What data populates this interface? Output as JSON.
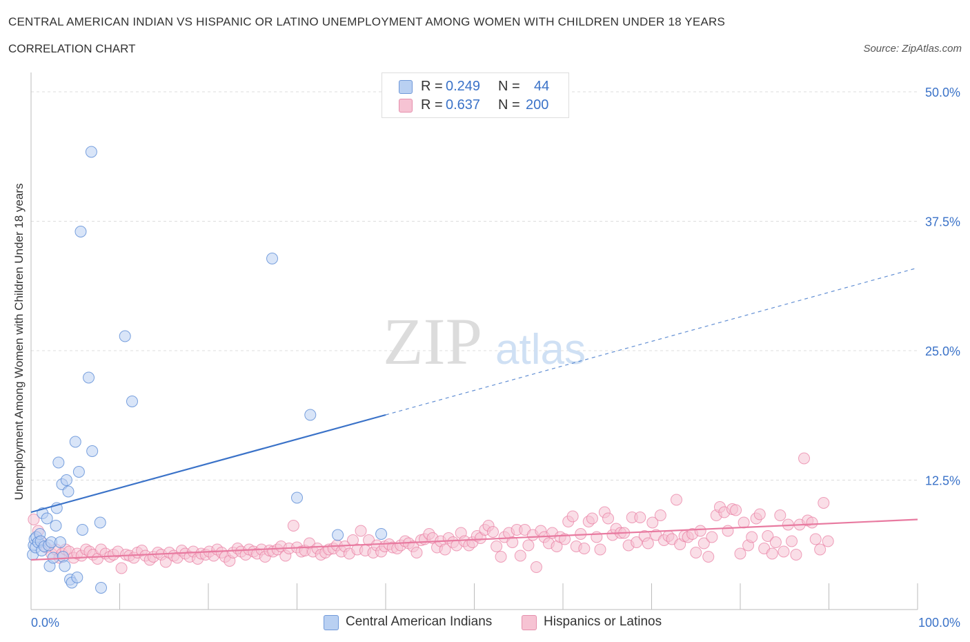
{
  "title": "CENTRAL AMERICAN INDIAN VS HISPANIC OR LATINO UNEMPLOYMENT AMONG WOMEN WITH CHILDREN UNDER 18 YEARS",
  "subtitle": "CORRELATION CHART",
  "source": "Source: ZipAtlas.com",
  "watermark": {
    "zip": "ZIP",
    "atlas": "atlas"
  },
  "colors": {
    "blue": "#3a72c8",
    "blue_fill": "#b9d0f2",
    "pink": "#e87aa0",
    "pink_fill": "#f6c3d3"
  },
  "legend": {
    "rows": [
      {
        "r_label": "R =",
        "r_value": "0.249",
        "n_label": "N =",
        "n_value": "44"
      },
      {
        "r_label": "R =",
        "r_value": "0.637",
        "n_label": "N =",
        "n_value": "200"
      }
    ]
  },
  "bottom_legend": [
    "Central American Indians",
    "Hispanics or Latinos"
  ],
  "chart_data": {
    "type": "scatter",
    "title": "CENTRAL AMERICAN INDIAN VS HISPANIC OR LATINO UNEMPLOYMENT AMONG WOMEN WITH CHILDREN UNDER 18 YEARS",
    "xlabel": "",
    "ylabel": "Unemployment Among Women with Children Under 18 years",
    "xlim": [
      0,
      100
    ],
    "ylim": [
      0,
      50
    ],
    "x_tick_labels": [
      "0.0%",
      "100.0%"
    ],
    "y_ticks": [
      12.5,
      25.0,
      37.5,
      50.0
    ],
    "y_tick_labels": [
      "12.5%",
      "25.0%",
      "37.5%",
      "50.0%"
    ],
    "grid": true,
    "legend_position": "top-center",
    "series": [
      {
        "name": "Central American Indians",
        "r": 0.249,
        "n": 44,
        "trend": {
          "x0": 0,
          "y0": 9.4,
          "x1": 40,
          "y1": 18.8,
          "dashed_x1": 100,
          "dashed_y1": 33.0
        },
        "points": [
          [
            0.2,
            5.3
          ],
          [
            0.3,
            6.2
          ],
          [
            0.4,
            6.8
          ],
          [
            0.5,
            6.0
          ],
          [
            0.6,
            7.0
          ],
          [
            0.8,
            6.5
          ],
          [
            1.0,
            7.3
          ],
          [
            1.1,
            6.6
          ],
          [
            1.2,
            5.7
          ],
          [
            1.3,
            9.3
          ],
          [
            1.5,
            6.1
          ],
          [
            1.8,
            8.8
          ],
          [
            2.0,
            6.2
          ],
          [
            2.1,
            4.2
          ],
          [
            2.3,
            6.5
          ],
          [
            2.5,
            5.0
          ],
          [
            2.8,
            8.1
          ],
          [
            2.9,
            9.8
          ],
          [
            3.1,
            14.2
          ],
          [
            3.3,
            6.5
          ],
          [
            3.5,
            12.1
          ],
          [
            3.6,
            5.1
          ],
          [
            3.8,
            4.2
          ],
          [
            4.0,
            12.5
          ],
          [
            4.2,
            11.4
          ],
          [
            4.4,
            2.9
          ],
          [
            4.6,
            2.6
          ],
          [
            5.0,
            16.2
          ],
          [
            5.2,
            3.1
          ],
          [
            5.4,
            13.3
          ],
          [
            5.6,
            36.5
          ],
          [
            5.8,
            7.7
          ],
          [
            6.5,
            22.4
          ],
          [
            6.9,
            15.3
          ],
          [
            6.8,
            44.2
          ],
          [
            7.8,
            8.4
          ],
          [
            7.9,
            2.1
          ],
          [
            10.6,
            26.4
          ],
          [
            11.4,
            20.1
          ],
          [
            27.2,
            33.9
          ],
          [
            30.0,
            10.8
          ],
          [
            31.5,
            18.8
          ],
          [
            34.6,
            7.2
          ],
          [
            39.5,
            7.3
          ]
        ]
      },
      {
        "name": "Hispanics or Latinos",
        "r": 0.637,
        "n": 200,
        "trend": {
          "x0": 0,
          "y0": 4.8,
          "x1": 100,
          "y1": 8.7
        },
        "points": [
          [
            0.3,
            8.7
          ],
          [
            0.8,
            7.6
          ],
          [
            1.2,
            6.5
          ],
          [
            1.7,
            6.0
          ],
          [
            2.3,
            5.4
          ],
          [
            2.8,
            5.8
          ],
          [
            3.2,
            5.0
          ],
          [
            3.5,
            5.4
          ],
          [
            3.9,
            5.8
          ],
          [
            4.3,
            5.6
          ],
          [
            4.8,
            5.0
          ],
          [
            5.2,
            5.4
          ],
          [
            5.7,
            5.2
          ],
          [
            6.2,
            5.8
          ],
          [
            6.6,
            5.6
          ],
          [
            7.0,
            5.3
          ],
          [
            7.5,
            4.9
          ],
          [
            7.9,
            5.8
          ],
          [
            8.4,
            5.4
          ],
          [
            8.9,
            5.1
          ],
          [
            9.3,
            5.3
          ],
          [
            9.8,
            5.6
          ],
          [
            10.2,
            4.0
          ],
          [
            10.7,
            5.3
          ],
          [
            11.1,
            5.2
          ],
          [
            11.6,
            5.0
          ],
          [
            12.0,
            5.5
          ],
          [
            12.5,
            5.7
          ],
          [
            12.9,
            5.2
          ],
          [
            13.4,
            4.8
          ],
          [
            13.8,
            5.1
          ],
          [
            14.3,
            5.5
          ],
          [
            14.7,
            5.3
          ],
          [
            15.2,
            4.6
          ],
          [
            15.6,
            5.5
          ],
          [
            16.1,
            5.2
          ],
          [
            16.5,
            5.0
          ],
          [
            17.0,
            5.7
          ],
          [
            17.4,
            5.4
          ],
          [
            17.9,
            5.1
          ],
          [
            18.3,
            5.6
          ],
          [
            18.8,
            4.9
          ],
          [
            19.2,
            5.4
          ],
          [
            19.7,
            5.3
          ],
          [
            20.1,
            5.6
          ],
          [
            20.6,
            5.2
          ],
          [
            21.0,
            5.8
          ],
          [
            21.5,
            5.5
          ],
          [
            21.9,
            5.1
          ],
          [
            22.4,
            4.7
          ],
          [
            22.8,
            5.5
          ],
          [
            23.3,
            5.9
          ],
          [
            23.7,
            5.6
          ],
          [
            24.2,
            5.3
          ],
          [
            24.6,
            5.8
          ],
          [
            25.1,
            5.6
          ],
          [
            25.5,
            5.4
          ],
          [
            26.0,
            5.8
          ],
          [
            26.4,
            5.1
          ],
          [
            26.9,
            5.7
          ],
          [
            27.3,
            5.6
          ],
          [
            27.8,
            5.8
          ],
          [
            28.2,
            6.1
          ],
          [
            28.7,
            5.2
          ],
          [
            29.1,
            5.9
          ],
          [
            29.6,
            8.1
          ],
          [
            30.0,
            6.0
          ],
          [
            30.5,
            5.6
          ],
          [
            30.9,
            5.7
          ],
          [
            31.4,
            6.4
          ],
          [
            31.8,
            5.6
          ],
          [
            32.3,
            5.9
          ],
          [
            32.7,
            5.3
          ],
          [
            33.2,
            5.5
          ],
          [
            33.6,
            5.8
          ],
          [
            34.1,
            5.9
          ],
          [
            34.5,
            6.2
          ],
          [
            35.0,
            5.6
          ],
          [
            35.4,
            6.1
          ],
          [
            35.9,
            5.4
          ],
          [
            36.3,
            6.7
          ],
          [
            36.8,
            5.8
          ],
          [
            37.2,
            7.6
          ],
          [
            37.7,
            5.7
          ],
          [
            38.1,
            6.7
          ],
          [
            38.6,
            5.5
          ],
          [
            39.0,
            6.2
          ],
          [
            39.5,
            5.6
          ],
          [
            39.9,
            6.1
          ],
          [
            40.4,
            6.3
          ],
          [
            40.8,
            6.0
          ],
          [
            41.3,
            5.9
          ],
          [
            41.7,
            6.2
          ],
          [
            42.2,
            6.6
          ],
          [
            42.6,
            6.4
          ],
          [
            43.1,
            6.1
          ],
          [
            43.5,
            5.5
          ],
          [
            44.0,
            6.7
          ],
          [
            44.4,
            6.8
          ],
          [
            44.9,
            7.3
          ],
          [
            45.3,
            6.9
          ],
          [
            45.8,
            6.0
          ],
          [
            46.2,
            6.6
          ],
          [
            46.7,
            5.8
          ],
          [
            47.1,
            6.9
          ],
          [
            47.6,
            6.5
          ],
          [
            48.0,
            6.2
          ],
          [
            48.5,
            7.4
          ],
          [
            48.9,
            6.6
          ],
          [
            49.4,
            6.2
          ],
          [
            49.8,
            6.5
          ],
          [
            50.3,
            7.1
          ],
          [
            50.7,
            6.9
          ],
          [
            51.2,
            7.7
          ],
          [
            51.6,
            8.1
          ],
          [
            52.1,
            7.5
          ],
          [
            52.5,
            6.1
          ],
          [
            53.0,
            5.1
          ],
          [
            53.4,
            7.0
          ],
          [
            53.9,
            7.4
          ],
          [
            54.3,
            6.5
          ],
          [
            54.8,
            7.7
          ],
          [
            55.2,
            5.2
          ],
          [
            55.7,
            7.7
          ],
          [
            56.1,
            6.2
          ],
          [
            56.6,
            7.2
          ],
          [
            57.0,
            4.1
          ],
          [
            57.5,
            7.6
          ],
          [
            57.9,
            7.0
          ],
          [
            58.4,
            6.4
          ],
          [
            58.8,
            7.4
          ],
          [
            59.3,
            6.1
          ],
          [
            59.7,
            7.0
          ],
          [
            60.2,
            6.8
          ],
          [
            60.6,
            8.5
          ],
          [
            61.1,
            9.0
          ],
          [
            61.5,
            6.1
          ],
          [
            62.0,
            7.3
          ],
          [
            62.4,
            5.9
          ],
          [
            62.9,
            8.5
          ],
          [
            63.3,
            8.8
          ],
          [
            63.8,
            7.0
          ],
          [
            64.2,
            5.8
          ],
          [
            64.7,
            9.4
          ],
          [
            65.1,
            8.8
          ],
          [
            65.6,
            7.2
          ],
          [
            66.0,
            7.8
          ],
          [
            66.5,
            7.4
          ],
          [
            66.9,
            7.4
          ],
          [
            67.4,
            6.2
          ],
          [
            67.8,
            8.9
          ],
          [
            68.3,
            6.5
          ],
          [
            68.7,
            8.9
          ],
          [
            69.2,
            7.1
          ],
          [
            69.6,
            6.4
          ],
          [
            70.1,
            8.4
          ],
          [
            70.5,
            7.2
          ],
          [
            71.0,
            9.1
          ],
          [
            71.4,
            6.7
          ],
          [
            71.9,
            7.1
          ],
          [
            72.3,
            6.8
          ],
          [
            72.8,
            10.6
          ],
          [
            73.2,
            6.3
          ],
          [
            73.7,
            7.1
          ],
          [
            74.1,
            7.0
          ],
          [
            74.6,
            7.3
          ],
          [
            75.0,
            5.5
          ],
          [
            75.5,
            7.6
          ],
          [
            75.9,
            6.4
          ],
          [
            76.4,
            5.1
          ],
          [
            76.8,
            7.0
          ],
          [
            77.3,
            9.1
          ],
          [
            77.7,
            9.9
          ],
          [
            78.2,
            9.4
          ],
          [
            78.6,
            7.6
          ],
          [
            79.1,
            9.7
          ],
          [
            79.5,
            9.6
          ],
          [
            80.0,
            5.4
          ],
          [
            80.4,
            8.4
          ],
          [
            80.9,
            6.2
          ],
          [
            81.3,
            7.0
          ],
          [
            81.8,
            8.8
          ],
          [
            82.2,
            9.2
          ],
          [
            82.7,
            5.9
          ],
          [
            83.1,
            7.1
          ],
          [
            83.6,
            5.4
          ],
          [
            84.0,
            6.5
          ],
          [
            84.5,
            9.1
          ],
          [
            84.9,
            5.6
          ],
          [
            85.4,
            8.2
          ],
          [
            85.8,
            6.6
          ],
          [
            86.3,
            5.3
          ],
          [
            86.7,
            8.2
          ],
          [
            87.2,
            14.6
          ],
          [
            87.6,
            8.6
          ],
          [
            88.1,
            8.4
          ],
          [
            88.5,
            6.8
          ],
          [
            89.0,
            5.8
          ],
          [
            89.4,
            10.3
          ],
          [
            89.9,
            6.6
          ]
        ]
      }
    ]
  }
}
